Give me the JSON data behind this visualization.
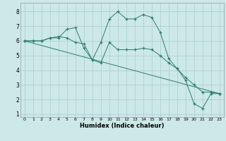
{
  "xlabel": "Humidex (Indice chaleur)",
  "background_color": "#cce8e8",
  "grid_color": "#aacccc",
  "line_color": "#2e7d6e",
  "xlim": [
    -0.5,
    23.5
  ],
  "ylim": [
    0.8,
    8.6
  ],
  "yticks": [
    1,
    2,
    3,
    4,
    5,
    6,
    7,
    8
  ],
  "xticks": [
    0,
    1,
    2,
    3,
    4,
    5,
    6,
    7,
    8,
    9,
    10,
    11,
    12,
    13,
    14,
    15,
    16,
    17,
    18,
    19,
    20,
    21,
    22,
    23
  ],
  "series": [
    {
      "x": [
        0,
        1,
        2,
        3,
        4,
        5,
        6,
        7,
        8,
        9,
        10,
        11,
        12,
        13,
        14,
        15,
        16,
        17,
        18,
        19,
        20,
        21,
        22,
        23
      ],
      "y": [
        6.0,
        6.0,
        6.0,
        6.2,
        6.2,
        6.8,
        6.9,
        5.5,
        4.7,
        5.9,
        7.5,
        8.0,
        7.5,
        7.5,
        7.8,
        7.6,
        6.6,
        4.8,
        4.1,
        3.3,
        1.7,
        1.4,
        2.4,
        2.4
      ]
    },
    {
      "x": [
        0,
        1,
        2,
        3,
        4,
        5,
        6,
        7,
        8,
        9,
        10,
        11,
        12,
        13,
        14,
        15,
        16,
        17,
        18,
        19,
        20,
        21,
        22,
        23
      ],
      "y": [
        6.0,
        6.0,
        6.0,
        6.2,
        6.3,
        6.2,
        5.9,
        5.8,
        4.7,
        4.5,
        5.9,
        5.4,
        5.4,
        5.4,
        5.5,
        5.4,
        5.0,
        4.5,
        4.1,
        3.5,
        3.0,
        2.5,
        2.5,
        2.4
      ]
    },
    {
      "x": [
        0,
        23
      ],
      "y": [
        6.0,
        2.4
      ]
    }
  ]
}
